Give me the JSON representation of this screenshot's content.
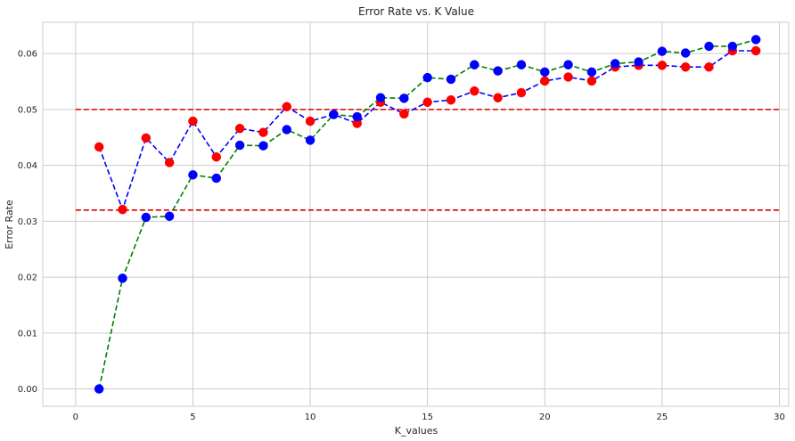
{
  "chart_data": {
    "type": "line",
    "title": "Error Rate vs. K Value",
    "xlabel": "K_values",
    "ylabel": "Error Rate",
    "xlim": [
      -1.4,
      30.4
    ],
    "ylim": [
      -0.0031,
      0.0656
    ],
    "xticks": [
      0,
      5,
      10,
      15,
      20,
      25,
      30
    ],
    "xtick_labels": [
      "0",
      "5",
      "10",
      "15",
      "20",
      "25",
      "30"
    ],
    "yticks": [
      0.0,
      0.01,
      0.02,
      0.03,
      0.04,
      0.05,
      0.06
    ],
    "ytick_labels": [
      "0.00",
      "0.01",
      "0.02",
      "0.03",
      "0.04",
      "0.05",
      "0.06"
    ],
    "grid": true,
    "x": [
      1,
      2,
      3,
      4,
      5,
      6,
      7,
      8,
      9,
      10,
      11,
      12,
      13,
      14,
      15,
      16,
      17,
      18,
      19,
      20,
      21,
      22,
      23,
      24,
      25,
      26,
      27,
      28,
      29
    ],
    "series": [
      {
        "line_color": "#0000ff",
        "marker_color": "#ff0000",
        "linestyle": "dashed",
        "values": [
          0.0433,
          0.0321,
          0.0449,
          0.0405,
          0.0479,
          0.0415,
          0.0466,
          0.0459,
          0.0505,
          0.0479,
          0.0491,
          0.0475,
          0.0513,
          0.0492,
          0.0513,
          0.0517,
          0.0533,
          0.0521,
          0.053,
          0.0551,
          0.0558,
          0.0551,
          0.0576,
          0.0579,
          0.0579,
          0.0576,
          0.0576,
          0.0605,
          0.0605
        ]
      },
      {
        "line_color": "#008000",
        "marker_color": "#0000ff",
        "linestyle": "dashed",
        "values": [
          0.0,
          0.0198,
          0.0307,
          0.0309,
          0.0383,
          0.0377,
          0.0436,
          0.0435,
          0.0464,
          0.0445,
          0.0491,
          0.0487,
          0.0521,
          0.052,
          0.0557,
          0.0554,
          0.058,
          0.0569,
          0.058,
          0.0567,
          0.058,
          0.0567,
          0.0582,
          0.0585,
          0.0604,
          0.0601,
          0.0613,
          0.0613,
          0.0625
        ]
      }
    ],
    "hlines": [
      {
        "y": 0.05,
        "color": "#dd0000",
        "linestyle": "dashed"
      },
      {
        "y": 0.032,
        "color": "#dd0000",
        "linestyle": "dashed"
      }
    ],
    "colors": {
      "grid": "#cccccc",
      "axes": "#cccccc",
      "text": "#262626"
    }
  }
}
